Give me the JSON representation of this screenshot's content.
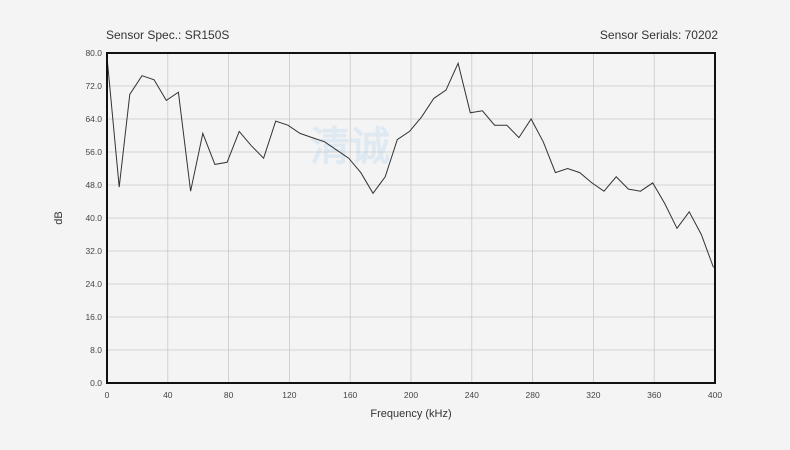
{
  "header": {
    "spec": "Sensor Spec.: SR150S",
    "serial": "Sensor Serials: 70202"
  },
  "watermark": "清诚",
  "colors": {
    "line": "#333333",
    "grid": "#c8c8c8",
    "frame": "#111111",
    "watermark": "#dfe9f2"
  },
  "chart_data": {
    "type": "line",
    "xlabel": "Frequency (kHz)",
    "ylabel": "dB",
    "xlim": [
      0,
      400
    ],
    "ylim": [
      0,
      80
    ],
    "x_ticks": [
      0,
      40,
      80,
      120,
      160,
      200,
      240,
      280,
      320,
      360,
      400
    ],
    "y_ticks": [
      "0.0",
      "8.0",
      "16.0",
      "24.0",
      "32.0",
      "40.0",
      "48.0",
      "56.0",
      "64.0",
      "72.0",
      "80.0"
    ],
    "grid": true,
    "series": [
      {
        "x": [
          0,
          8,
          15,
          23,
          31,
          39,
          47,
          55,
          63,
          71,
          79,
          87,
          95,
          103,
          111,
          119,
          127,
          135,
          143,
          151,
          159,
          167,
          175,
          183,
          191,
          199,
          207,
          215,
          223,
          231,
          239,
          247,
          255,
          263,
          271,
          279,
          287,
          295,
          303,
          311,
          319,
          327,
          335,
          343,
          351,
          359,
          367,
          375,
          383,
          391,
          399
        ],
        "y": [
          79,
          47.5,
          70,
          74.5,
          73.5,
          68.5,
          70.5,
          46.5,
          60.5,
          53,
          53.5,
          61,
          57.5,
          54.5,
          63.5,
          62.5,
          60.5,
          59.5,
          58.5,
          56.5,
          54.5,
          51,
          46,
          50,
          59,
          61,
          64.5,
          69,
          71,
          77.5,
          65.5,
          66,
          62.5,
          62.5,
          59.5,
          64,
          58.5,
          51,
          52,
          51,
          48.5,
          46.5,
          50,
          47,
          46.5,
          48.5,
          43.5,
          37.5,
          41.5,
          36,
          28
        ]
      }
    ]
  }
}
